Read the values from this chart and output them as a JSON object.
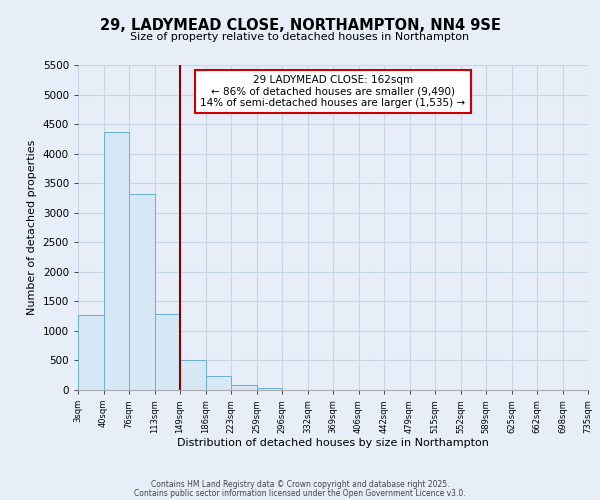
{
  "title": "29, LADYMEAD CLOSE, NORTHAMPTON, NN4 9SE",
  "subtitle": "Size of property relative to detached houses in Northampton",
  "bar_values": [
    1270,
    4370,
    3310,
    1280,
    500,
    230,
    80,
    30,
    5,
    2,
    1,
    0,
    0,
    0,
    0,
    0,
    0,
    0,
    0,
    0
  ],
  "bin_labels": [
    "3sqm",
    "40sqm",
    "76sqm",
    "113sqm",
    "149sqm",
    "186sqm",
    "223sqm",
    "259sqm",
    "296sqm",
    "332sqm",
    "369sqm",
    "406sqm",
    "442sqm",
    "479sqm",
    "515sqm",
    "552sqm",
    "589sqm",
    "625sqm",
    "662sqm",
    "698sqm",
    "735sqm"
  ],
  "bar_color": "#d6e8f5",
  "bar_edge_color": "#6aafd6",
  "vline_x": 4.0,
  "vline_color": "#8b0000",
  "annotation_title": "29 LADYMEAD CLOSE: 162sqm",
  "annotation_line1": "← 86% of detached houses are smaller (9,490)",
  "annotation_line2": "14% of semi-detached houses are larger (1,535) →",
  "xlabel": "Distribution of detached houses by size in Northampton",
  "ylabel": "Number of detached properties",
  "ylim": [
    0,
    5500
  ],
  "yticks": [
    0,
    500,
    1000,
    1500,
    2000,
    2500,
    3000,
    3500,
    4000,
    4500,
    5000,
    5500
  ],
  "footer1": "Contains HM Land Registry data © Crown copyright and database right 2025.",
  "footer2": "Contains public sector information licensed under the Open Government Licence v3.0.",
  "bg_color": "#e8eef8",
  "plot_bg_color": "#e8eef8",
  "grid_color": "#c8d4e8",
  "annotation_box_color": "#ffffff",
  "annotation_box_edge": "#cc0000"
}
